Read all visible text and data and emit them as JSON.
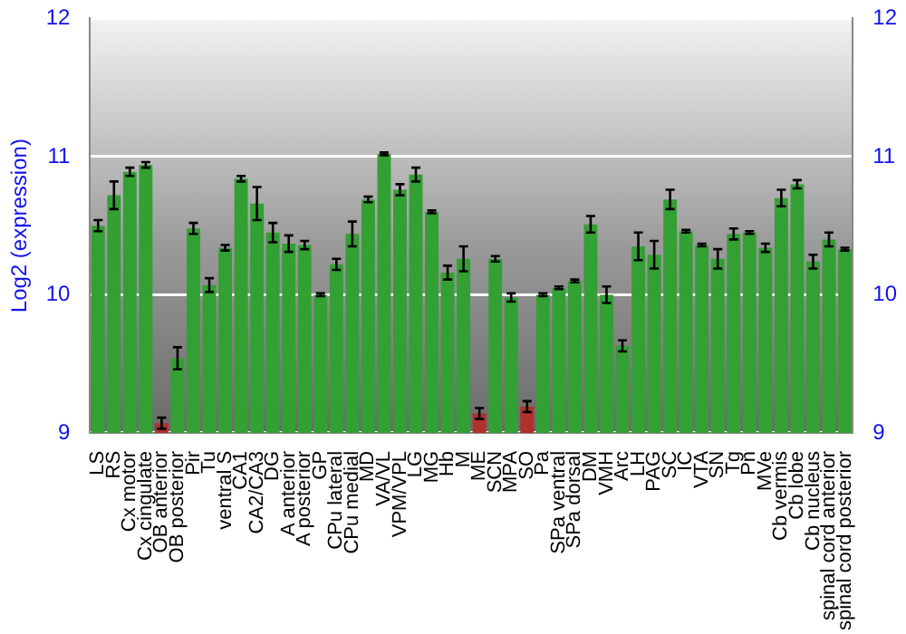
{
  "chart_data": {
    "type": "bar",
    "ylabel": "Log2 (expression)",
    "categories": [
      "LS",
      "RS",
      "Cx motor",
      "Cx cingulate",
      "OB anterior",
      "OB posterior",
      "Pir",
      "Tu",
      "ventral S",
      "CA1",
      "CA2/CA3",
      "DG",
      "A anterior",
      "A posterior",
      "GP",
      "CPu lateral",
      "CPu medial",
      "MD",
      "VA/VL",
      "VPM/VPL",
      "LG",
      "MG",
      "Hb",
      "M",
      "ME",
      "SCN",
      "MPA",
      "SO",
      "Pa",
      "SPa ventral",
      "SPa dorsal",
      "DM",
      "VMH",
      "Arc",
      "LH",
      "PAG",
      "SC",
      "IC",
      "VTA",
      "SN",
      "Tg",
      "Pn",
      "MVe",
      "Cb vermis",
      "Cb lobe",
      "Cb nucleus",
      "spinal cord anterior",
      "spinal cord posterior"
    ],
    "values": [
      10.5,
      10.72,
      10.89,
      10.94,
      9.07,
      9.54,
      10.48,
      10.07,
      10.34,
      10.84,
      10.66,
      10.45,
      10.37,
      10.36,
      10.0,
      10.22,
      10.44,
      10.69,
      11.02,
      10.76,
      10.87,
      10.6,
      10.16,
      10.26,
      9.14,
      10.26,
      9.98,
      9.19,
      10.0,
      10.05,
      10.1,
      10.51,
      10.0,
      9.63,
      10.35,
      10.29,
      10.69,
      10.46,
      10.36,
      10.26,
      10.44,
      10.45,
      10.34,
      10.7,
      10.8,
      10.24,
      10.4,
      10.33
    ],
    "errors": [
      0.04,
      0.1,
      0.03,
      0.02,
      0.04,
      0.08,
      0.04,
      0.05,
      0.02,
      0.02,
      0.12,
      0.07,
      0.06,
      0.03,
      0.01,
      0.04,
      0.09,
      0.02,
      0.01,
      0.04,
      0.05,
      0.01,
      0.05,
      0.09,
      0.04,
      0.02,
      0.03,
      0.04,
      0.01,
      0.01,
      0.01,
      0.06,
      0.06,
      0.04,
      0.1,
      0.1,
      0.07,
      0.01,
      0.01,
      0.07,
      0.04,
      0.01,
      0.03,
      0.06,
      0.03,
      0.05,
      0.05,
      0.01
    ],
    "colors": [
      "#33a033",
      "#33a033",
      "#33a033",
      "#33a033",
      "#b03030",
      "#33a033",
      "#33a033",
      "#33a033",
      "#33a033",
      "#33a033",
      "#33a033",
      "#33a033",
      "#33a033",
      "#33a033",
      "#33a033",
      "#33a033",
      "#33a033",
      "#33a033",
      "#33a033",
      "#33a033",
      "#33a033",
      "#33a033",
      "#33a033",
      "#33a033",
      "#b03030",
      "#33a033",
      "#33a033",
      "#b03030",
      "#33a033",
      "#33a033",
      "#33a033",
      "#33a033",
      "#33a033",
      "#33a033",
      "#33a033",
      "#33a033",
      "#33a033",
      "#33a033",
      "#33a033",
      "#33a033",
      "#33a033",
      "#33a033",
      "#33a033",
      "#33a033",
      "#33a033",
      "#33a033",
      "#33a033",
      "#33a033"
    ],
    "ylim": [
      9,
      12
    ],
    "yticks": [
      9,
      10,
      11,
      12
    ],
    "y2lim": [
      9,
      12
    ],
    "y2ticks": [
      9,
      10,
      11,
      12
    ],
    "grid": "y",
    "legend": false
  }
}
